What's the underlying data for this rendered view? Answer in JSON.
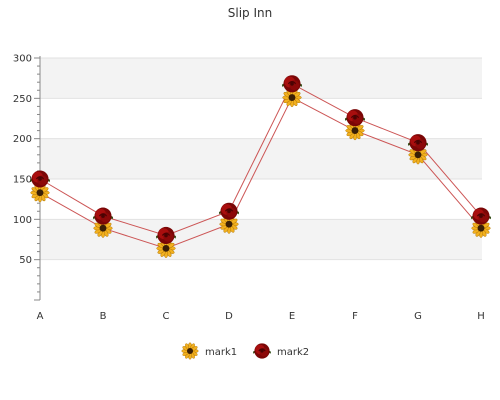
{
  "chart_data": {
    "type": "line",
    "title": "Slip Inn",
    "xlabel": "",
    "ylabel": "",
    "categories": [
      "A",
      "B",
      "C",
      "D",
      "E",
      "F",
      "G",
      "H"
    ],
    "ylim": [
      0,
      300
    ],
    "yticks": [
      50,
      100,
      150,
      200,
      250,
      300
    ],
    "grid": "horizontal bands",
    "legend_position": "bottom",
    "series": [
      {
        "name": "mark1",
        "values": [
          133,
          89,
          64,
          94,
          251,
          210,
          180,
          89
        ],
        "marker": "sunflower-icon",
        "color": "#e8a317"
      },
      {
        "name": "mark2",
        "values": [
          150,
          104,
          80,
          110,
          268,
          226,
          195,
          104
        ],
        "marker": "rose-icon",
        "color": "#9b0a0a"
      }
    ],
    "line_color": "#cc5555",
    "band_color": "#f3f3f3"
  }
}
